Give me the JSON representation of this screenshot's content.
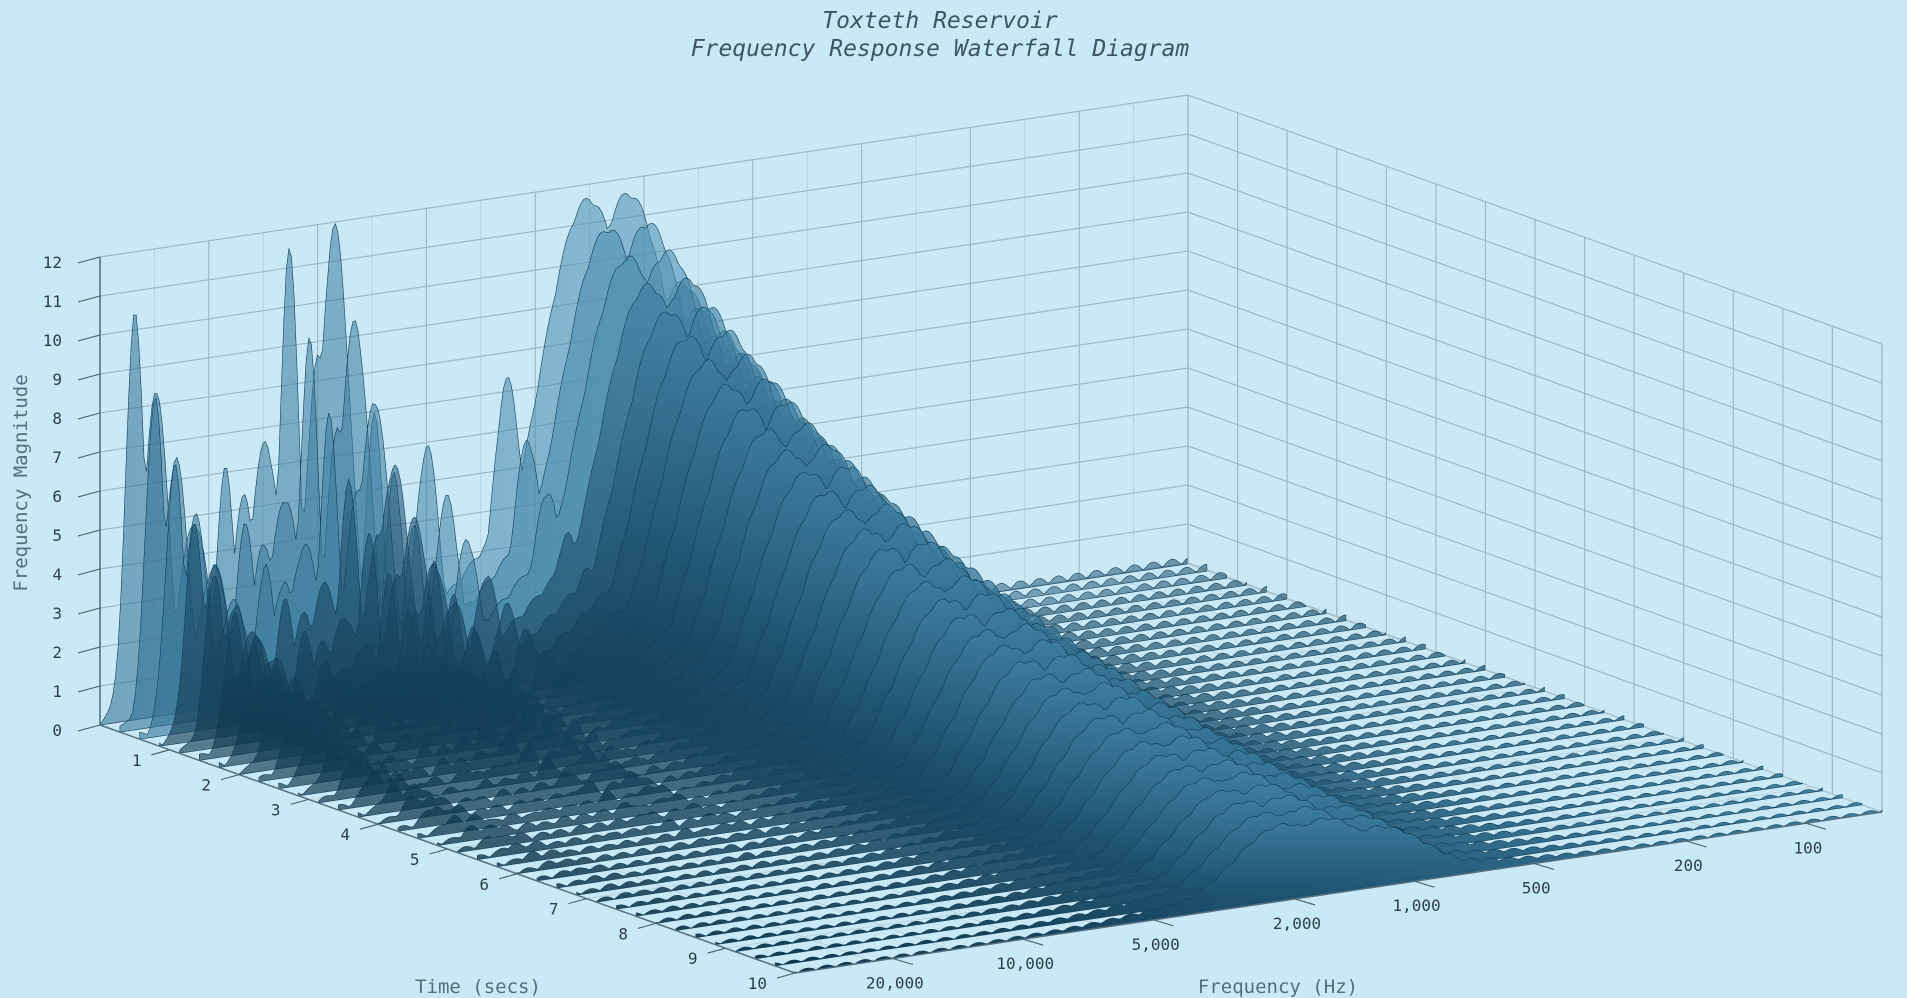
{
  "chart_data": {
    "type": "waterfall-3d-surface",
    "title": "Toxteth Reservoir",
    "subtitle": "Frequency Response Waterfall Diagram",
    "ylabel": "Frequency Magnitude",
    "xlabel": "Frequency (Hz)",
    "zlabel": "Time (secs)",
    "magnitude_ticks": [
      "0",
      "1",
      "2",
      "3",
      "4",
      "5",
      "6",
      "7",
      "8",
      "9",
      "10",
      "11",
      "12"
    ],
    "time_ticks": [
      "1",
      "2",
      "3",
      "4",
      "5",
      "6",
      "7",
      "8",
      "9",
      "10"
    ],
    "frequency_ticks": [
      "20,000",
      "10,000",
      "5,000",
      "2,000",
      "1,000",
      "500",
      "200",
      "100"
    ],
    "magnitude_range": [
      0,
      12
    ],
    "time_range": [
      0,
      10
    ],
    "grid": true,
    "frequency_scale": "log",
    "surface_color": "#1f5877",
    "ridge_color": "#2f7396",
    "peaks_at_time_0": [
      {
        "frequency": 16000,
        "magnitude": 10.4
      },
      {
        "frequency": 14000,
        "magnitude": 8.3
      },
      {
        "frequency": 11000,
        "magnitude": 4.7
      },
      {
        "frequency": 9000,
        "magnitude": 6.0
      },
      {
        "frequency": 8000,
        "magnitude": 5.2
      },
      {
        "frequency": 7000,
        "magnitude": 6.5
      },
      {
        "frequency": 6000,
        "magnitude": 11.5
      },
      {
        "frequency": 5000,
        "magnitude": 8.5
      },
      {
        "frequency": 4500,
        "magnitude": 11.8
      },
      {
        "frequency": 3500,
        "magnitude": 6.8
      },
      {
        "frequency": 2500,
        "magnitude": 5.8
      },
      {
        "frequency": 1500,
        "magnitude": 7.2
      },
      {
        "frequency": 900,
        "magnitude": 11.5
      },
      {
        "frequency": 700,
        "magnitude": 11.5
      },
      {
        "frequency": 500,
        "magnitude": 9.0
      }
    ]
  }
}
